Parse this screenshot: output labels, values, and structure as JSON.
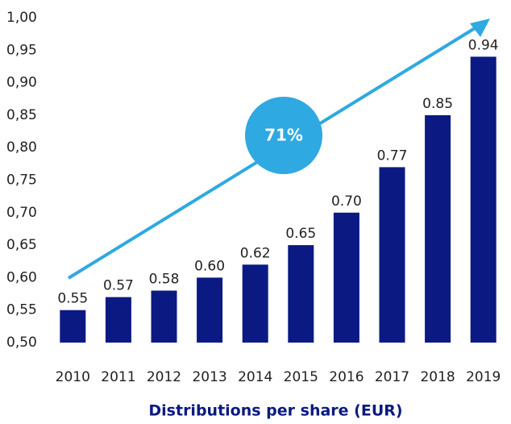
{
  "chart_data": {
    "type": "bar",
    "title": "Distributions per share (EUR)",
    "annotation": "71%",
    "categories": [
      "2010",
      "2011",
      "2012",
      "2013",
      "2014",
      "2015",
      "2016",
      "2017",
      "2018",
      "2019"
    ],
    "values": [
      0.55,
      0.57,
      0.58,
      0.6,
      0.62,
      0.65,
      0.7,
      0.77,
      0.85,
      0.94
    ],
    "value_labels": [
      "0.55",
      "0.57",
      "0.58",
      "0.60",
      "0.62",
      "0.65",
      "0.70",
      "0.77",
      "0.85",
      "0.94"
    ],
    "color": "#0b1a82",
    "arrow_color": "#2ea9e1",
    "ylim": [
      0.5,
      1.0
    ],
    "yticks": [
      {
        "value": 0.5,
        "label": "0,50"
      },
      {
        "value": 0.55,
        "label": "0,55"
      },
      {
        "value": 0.6,
        "label": "0,60"
      },
      {
        "value": 0.65,
        "label": "0,65"
      },
      {
        "value": 0.7,
        "label": "0,70"
      },
      {
        "value": 0.75,
        "label": "0,75"
      },
      {
        "value": 0.8,
        "label": "0,80"
      },
      {
        "value": 0.85,
        "label": "0,85"
      },
      {
        "value": 0.9,
        "label": "0,90"
      },
      {
        "value": 0.95,
        "label": "0,95"
      },
      {
        "value": 1.0,
        "label": "1,00"
      }
    ],
    "grid": false
  }
}
